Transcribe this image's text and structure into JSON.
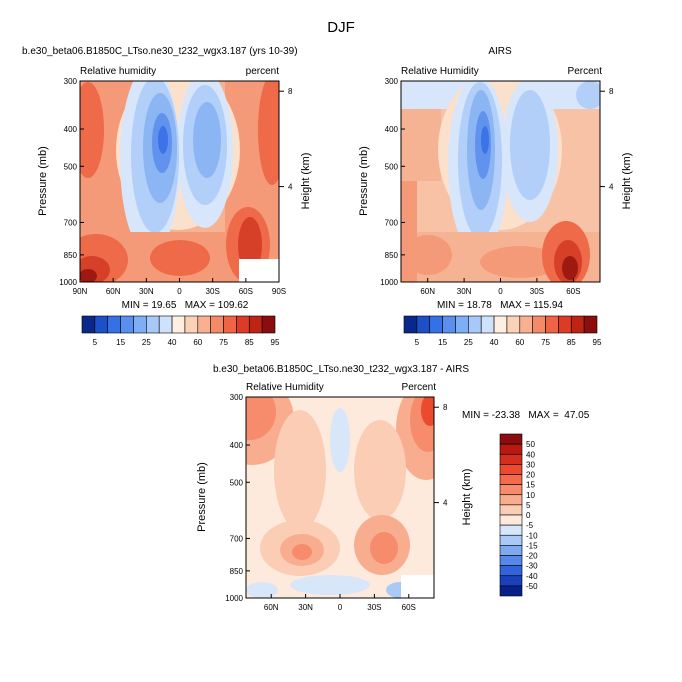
{
  "figure": {
    "title": "DJF"
  },
  "chart_data": [
    {
      "type": "heatmap",
      "title": "b.e30_beta06.B1850C_LTso.ne30_t232_wgx3.187 (yrs 10-39)",
      "left_label": "Relative humidity",
      "right_label": "percent",
      "ylabel": "Pressure (mb)",
      "y2label": "Height (km)",
      "x_ticks": [
        "90N",
        "60N",
        "30N",
        "0",
        "30S",
        "60S",
        "90S"
      ],
      "y_ticks": [
        "300",
        "400",
        "500",
        "700",
        "850",
        "1000"
      ],
      "y2_ticks": [
        "8",
        "4"
      ],
      "stats": "MIN = 19.65   MAX = 109.62",
      "ylim": [
        1000,
        300
      ],
      "legend": {
        "orientation": "horizontal",
        "labels": [
          "5",
          "15",
          "25",
          "40",
          "60",
          "75",
          "85",
          "95"
        ],
        "colors": [
          "#08288a",
          "#1d4fc8",
          "#3571e6",
          "#5990ef",
          "#7eaef6",
          "#a6c9fa",
          "#cfe2fb",
          "#fdf0e0",
          "#fbd2b6",
          "#f8b091",
          "#f58a69",
          "#ef6444",
          "#dc3c25",
          "#be2414",
          "#8b0d0d"
        ]
      }
    },
    {
      "type": "heatmap",
      "title": "AIRS",
      "left_label": "Relative Humidity",
      "right_label": "Percent",
      "ylabel": "Pressure (mb)",
      "y2label": "Height (km)",
      "x_ticks": [
        "60N",
        "30N",
        "0",
        "30S",
        "60S"
      ],
      "y_ticks": [
        "300",
        "400",
        "500",
        "700",
        "850",
        "1000"
      ],
      "y2_ticks": [
        "8",
        "4"
      ],
      "stats": "MIN = 18.78   MAX = 115.94",
      "ylim": [
        1000,
        300
      ],
      "legend": {
        "orientation": "horizontal",
        "labels": [
          "5",
          "15",
          "25",
          "40",
          "60",
          "75",
          "85",
          "95"
        ],
        "colors": [
          "#08288a",
          "#1d4fc8",
          "#3571e6",
          "#5990ef",
          "#7eaef6",
          "#a6c9fa",
          "#cfe2fb",
          "#fdf0e0",
          "#fbd2b6",
          "#f8b091",
          "#f58a69",
          "#ef6444",
          "#dc3c25",
          "#be2414",
          "#8b0d0d"
        ]
      }
    },
    {
      "type": "heatmap",
      "title": "b.e30_beta06.B1850C_LTso.ne30_t232_wgx3.187 - AIRS",
      "left_label": "Relative Humidity",
      "right_label": "Percent",
      "ylabel": "Pressure (mb)",
      "y2label": "Height (km)",
      "x_ticks": [
        "60N",
        "30N",
        "0",
        "30S",
        "60S"
      ],
      "y_ticks": [
        "300",
        "400",
        "500",
        "700",
        "850",
        "1000"
      ],
      "y2_ticks": [
        "8",
        "4"
      ],
      "stats": "MIN = -23.38   MAX =  47.05",
      "ylim": [
        1000,
        300
      ],
      "legend": {
        "orientation": "vertical",
        "labels": [
          "50",
          "40",
          "30",
          "20",
          "15",
          "10",
          "5",
          "0",
          "-5",
          "-10",
          "-15",
          "-20",
          "-30",
          "-40",
          "-50"
        ],
        "colors": [
          "#8b0d0d",
          "#b81a12",
          "#d42e1c",
          "#ea4a2e",
          "#f36b4a",
          "#f78c6c",
          "#f9ad8f",
          "#fbcdb5",
          "#fdeadd",
          "#d8e6fa",
          "#aac9f6",
          "#80aaf0",
          "#5787e8",
          "#3163dc",
          "#1a40bc",
          "#08208a"
        ]
      }
    }
  ]
}
